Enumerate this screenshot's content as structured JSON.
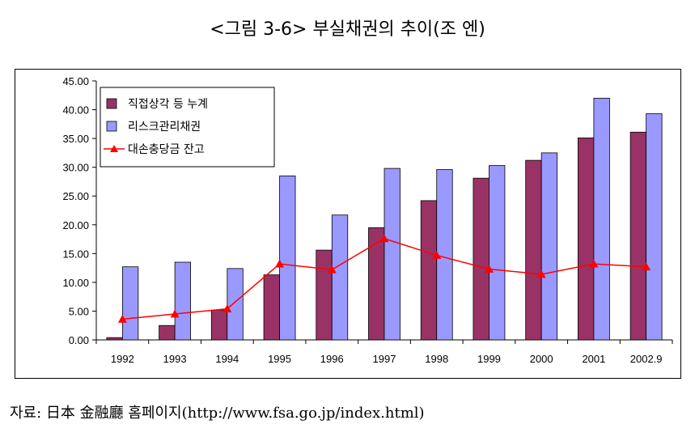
{
  "title": "<그림 3-6> 부실채권의 추이(조 엔)",
  "source": "자료: 日本 金融廳 홈페이지(http://www.fsa.go.jp/index.html)",
  "colors": {
    "series1": "#993366",
    "series2": "#9999ff",
    "series3": "#ff0000"
  },
  "chart_data": {
    "type": "bar",
    "categories": [
      "1992",
      "1993",
      "1994",
      "1995",
      "1996",
      "1997",
      "1998",
      "1999",
      "2000",
      "2001",
      "2002.9"
    ],
    "ylim": [
      0,
      45
    ],
    "yticks": [
      "0.00",
      "5.00",
      "10.00",
      "15.00",
      "20.00",
      "25.00",
      "30.00",
      "35.00",
      "40.00",
      "45.00"
    ],
    "legend_position": "top-left",
    "grid": false,
    "series": [
      {
        "name": "직접상각 등 누계",
        "type": "bar",
        "values": [
          0.4,
          2.5,
          5.2,
          11.3,
          15.6,
          19.5,
          24.2,
          28.1,
          31.2,
          35.1,
          36.1
        ]
      },
      {
        "name": "리스크관리채권",
        "type": "bar",
        "values": [
          12.7,
          13.5,
          12.4,
          28.5,
          21.7,
          29.8,
          29.6,
          30.3,
          32.5,
          42.0,
          39.3
        ]
      },
      {
        "name": "대손충당금 잔고",
        "type": "line",
        "values": [
          3.6,
          4.5,
          5.4,
          13.2,
          12.2,
          17.6,
          14.7,
          12.3,
          11.4,
          13.2,
          12.7
        ]
      }
    ]
  }
}
